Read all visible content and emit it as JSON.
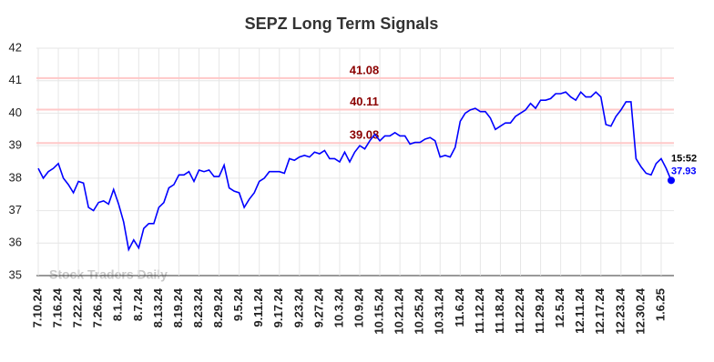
{
  "chart_data": {
    "type": "line",
    "title": "SEPZ Long Term Signals",
    "watermark": "Stock Traders Daily",
    "categories": [
      "7.10.24",
      null,
      null,
      null,
      "7.16.24",
      null,
      null,
      null,
      "7.22.24",
      null,
      null,
      null,
      "7.26.24",
      null,
      null,
      null,
      "8.1.24",
      null,
      null,
      null,
      "8.7.24",
      null,
      null,
      null,
      "8.13.24",
      null,
      null,
      null,
      "8.19.24",
      null,
      null,
      null,
      "8.23.24",
      null,
      null,
      null,
      "8.29.24",
      null,
      null,
      null,
      "9.5.24",
      null,
      null,
      null,
      "9.11.24",
      null,
      null,
      null,
      "9.17.24",
      null,
      null,
      null,
      "9.23.24",
      null,
      null,
      null,
      "9.27.24",
      null,
      null,
      null,
      "10.3.24",
      null,
      null,
      null,
      "10.9.24",
      null,
      null,
      null,
      "10.15.24",
      null,
      null,
      null,
      "10.21.24",
      null,
      null,
      null,
      "10.25.24",
      null,
      null,
      null,
      "10.31.24",
      null,
      null,
      null,
      "11.6.24",
      null,
      null,
      null,
      "11.12.24",
      null,
      null,
      null,
      "11.18.24",
      null,
      null,
      null,
      "11.22.24",
      null,
      null,
      null,
      "11.29.24",
      null,
      null,
      null,
      "12.5.24",
      null,
      null,
      null,
      "12.11.24",
      null,
      null,
      null,
      "12.17.24",
      null,
      null,
      null,
      "12.23.24",
      null,
      null,
      null,
      "12.30.24",
      null,
      null,
      null,
      "1.6.25",
      null,
      null
    ],
    "values": [
      38.3,
      38.0,
      38.2,
      38.3,
      38.45,
      38.0,
      37.8,
      37.55,
      37.9,
      37.85,
      37.1,
      37.0,
      37.25,
      37.3,
      37.2,
      37.65,
      37.2,
      36.65,
      35.8,
      36.1,
      35.85,
      36.45,
      36.6,
      36.6,
      37.1,
      37.25,
      37.7,
      37.8,
      38.1,
      38.1,
      38.2,
      37.9,
      38.25,
      38.2,
      38.25,
      38.05,
      38.05,
      38.4,
      37.7,
      37.6,
      37.55,
      37.1,
      37.35,
      37.55,
      37.9,
      38.0,
      38.2,
      38.2,
      38.2,
      38.15,
      38.6,
      38.55,
      38.65,
      38.7,
      38.65,
      38.8,
      38.75,
      38.85,
      38.6,
      38.6,
      38.5,
      38.8,
      38.5,
      38.8,
      39.0,
      38.9,
      39.15,
      39.35,
      39.15,
      39.3,
      39.3,
      39.4,
      39.3,
      39.3,
      39.05,
      39.1,
      39.1,
      39.2,
      39.25,
      39.15,
      38.65,
      38.7,
      38.65,
      38.95,
      39.75,
      40.0,
      40.1,
      40.15,
      40.05,
      40.05,
      39.85,
      39.5,
      39.6,
      39.7,
      39.7,
      39.9,
      40.0,
      40.1,
      40.3,
      40.15,
      40.4,
      40.4,
      40.45,
      40.6,
      40.6,
      40.65,
      40.5,
      40.4,
      40.65,
      40.5,
      40.5,
      40.65,
      40.5,
      39.65,
      39.6,
      39.9,
      40.1,
      40.35,
      40.35,
      38.6,
      38.35,
      38.15,
      38.1,
      38.45,
      38.6,
      38.3,
      37.93
    ],
    "color": "#0000ff",
    "levels": [
      41.08,
      40.11,
      39.08
    ],
    "level_color": "#ffc8c8",
    "level_label_color": "#8b0000",
    "last_time": "15:52",
    "ylim": [
      35,
      42
    ],
    "yticks": [
      35,
      36,
      37,
      38,
      39,
      40,
      41,
      42
    ],
    "grid": true
  }
}
